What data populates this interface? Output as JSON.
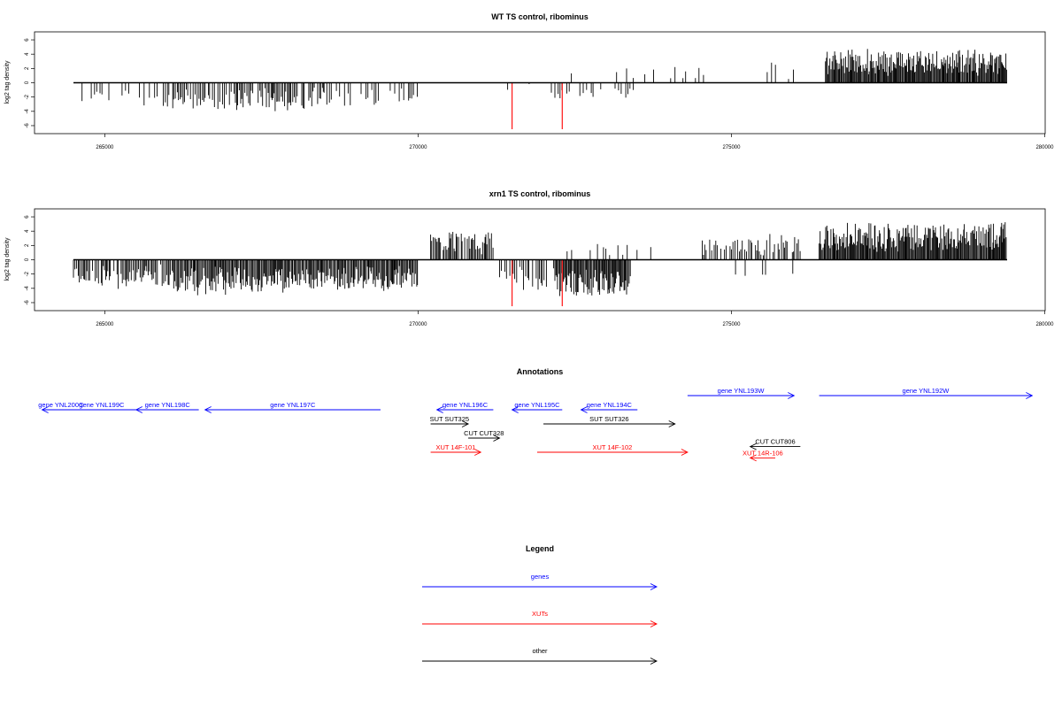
{
  "chart_data": [
    {
      "type": "bar",
      "title": "WT TS control, ribominus",
      "ylabel": "log2 tag density",
      "xlim": [
        264000,
        280000
      ],
      "ylim": [
        -6.5,
        6.5
      ],
      "x_ticks": [
        265000,
        270000,
        275000,
        280000
      ],
      "x_tick_labels": [
        "265000",
        "270000",
        "275000",
        "280000"
      ],
      "y_ticks": [
        -6,
        -4,
        -2,
        0,
        2,
        4,
        6
      ],
      "y_tick_labels": [
        "-6",
        "-4",
        "-2",
        "0",
        "2",
        "4",
        "6"
      ],
      "baseline": {
        "x": [
          264500,
          279400
        ],
        "y": 0
      },
      "segments": [
        {
          "start": 264500,
          "end": 266000,
          "level": -2.4,
          "density": 0.35,
          "jitter": 0.9
        },
        {
          "start": 266000,
          "end": 268500,
          "level": -3.0,
          "density": 0.6,
          "jitter": 1.0
        },
        {
          "start": 268500,
          "end": 270000,
          "level": -2.6,
          "density": 0.45,
          "jitter": 1.0
        },
        {
          "start": 270100,
          "end": 270800,
          "level": 2.5,
          "density": 0.12,
          "jitter": 0.8
        },
        {
          "start": 271300,
          "end": 272000,
          "level": -1.5,
          "density": 0.25,
          "jitter": 0.8
        },
        {
          "start": 272000,
          "end": 273500,
          "level": -1.8,
          "density": 0.35,
          "jitter": 0.8
        },
        {
          "start": 272200,
          "end": 273500,
          "level": 1.8,
          "density": 0.1,
          "jitter": 0.8
        },
        {
          "start": 273500,
          "end": 276000,
          "level": 2.0,
          "density": 0.25,
          "jitter": 0.8
        },
        {
          "start": 276500,
          "end": 279400,
          "level": 3.6,
          "density": 1.0,
          "jitter": 0.8
        }
      ],
      "highlights": [
        {
          "x": 271500,
          "y": -6.5,
          "color": "#ff0000"
        },
        {
          "x": 272300,
          "y": -6.5,
          "color": "#ff0000"
        }
      ]
    },
    {
      "type": "bar",
      "title": "xrn1 TS control, ribominus",
      "ylabel": "log2 tag density",
      "xlim": [
        264000,
        280000
      ],
      "ylim": [
        -6.5,
        6.5
      ],
      "x_ticks": [
        265000,
        270000,
        275000,
        280000
      ],
      "x_tick_labels": [
        "265000",
        "270000",
        "275000",
        "280000"
      ],
      "y_ticks": [
        -6,
        -4,
        -2,
        0,
        2,
        4,
        6
      ],
      "y_tick_labels": [
        "-6",
        "-4",
        "-2",
        "0",
        "2",
        "4",
        "6"
      ],
      "baseline": {
        "x": [
          264500,
          279400
        ],
        "y": 0
      },
      "segments": [
        {
          "start": 264500,
          "end": 266100,
          "level": -3.0,
          "density": 0.7,
          "jitter": 1.0
        },
        {
          "start": 266100,
          "end": 268000,
          "level": -3.6,
          "density": 0.85,
          "jitter": 1.1
        },
        {
          "start": 268000,
          "end": 270000,
          "level": -3.3,
          "density": 0.85,
          "jitter": 1.0
        },
        {
          "start": 270200,
          "end": 271200,
          "level": 3.0,
          "density": 0.7,
          "jitter": 1.0
        },
        {
          "start": 271300,
          "end": 272200,
          "level": -3.2,
          "density": 0.55,
          "jitter": 1.3
        },
        {
          "start": 272200,
          "end": 273400,
          "level": -4.0,
          "density": 0.9,
          "jitter": 1.0
        },
        {
          "start": 272300,
          "end": 273900,
          "level": 1.8,
          "density": 0.25,
          "jitter": 0.8
        },
        {
          "start": 274500,
          "end": 276100,
          "level": 2.6,
          "density": 0.55,
          "jitter": 0.9
        },
        {
          "start": 275000,
          "end": 276000,
          "level": -2.0,
          "density": 0.25,
          "jitter": 0.9
        },
        {
          "start": 276400,
          "end": 279400,
          "level": 4.0,
          "density": 1.0,
          "jitter": 0.9
        }
      ],
      "highlights": [
        {
          "x": 271500,
          "y": -6.5,
          "color": "#ff0000"
        },
        {
          "x": 272300,
          "y": -6.5,
          "color": "#ff0000"
        }
      ]
    }
  ],
  "annotations": {
    "title": "Annotations",
    "features": [
      {
        "label": "gene YNL200C",
        "start": 264000,
        "end": 264600,
        "row": 0,
        "strand": "-",
        "color": "#0000ff",
        "arrow": false
      },
      {
        "label": "gene YNL199C",
        "start": 264000,
        "end": 265900,
        "row": 0,
        "strand": "-",
        "color": "#0000ff"
      },
      {
        "label": "gene YNL198C",
        "start": 265500,
        "end": 266500,
        "row": 0,
        "strand": "-",
        "color": "#0000ff"
      },
      {
        "label": "gene YNL197C",
        "start": 266600,
        "end": 269400,
        "row": 0,
        "strand": "-",
        "color": "#0000ff"
      },
      {
        "label": "gene YNL196C",
        "start": 270300,
        "end": 271200,
        "row": 0,
        "strand": "-",
        "color": "#0000ff"
      },
      {
        "label": "gene YNL195C",
        "start": 271500,
        "end": 272300,
        "row": 0,
        "strand": "-",
        "color": "#0000ff"
      },
      {
        "label": "gene YNL194C",
        "start": 272600,
        "end": 273500,
        "row": 0,
        "strand": "-",
        "color": "#0000ff"
      },
      {
        "label": "gene YNL193W",
        "start": 274300,
        "end": 276000,
        "row": -1,
        "strand": "+",
        "color": "#0000ff"
      },
      {
        "label": "gene YNL192W",
        "start": 276400,
        "end": 279800,
        "row": -1,
        "strand": "+",
        "color": "#0000ff"
      },
      {
        "label": "SUT SUT325",
        "start": 270200,
        "end": 270800,
        "row": 1,
        "strand": "+",
        "color": "#000000"
      },
      {
        "label": "SUT SUT326",
        "start": 272000,
        "end": 274100,
        "row": 1,
        "strand": "+",
        "color": "#000000"
      },
      {
        "label": "CUT CUT328",
        "start": 270800,
        "end": 271300,
        "row": 2,
        "strand": "+",
        "color": "#000000"
      },
      {
        "label": "XUT 14F-101",
        "start": 270200,
        "end": 271000,
        "row": 3,
        "strand": "+",
        "color": "#ff0000"
      },
      {
        "label": "XUT 14F-102",
        "start": 271900,
        "end": 274300,
        "row": 3,
        "strand": "+",
        "color": "#ff0000"
      },
      {
        "label": "CUT CUT806",
        "start": 275300,
        "end": 276100,
        "row": 2.6,
        "strand": "-",
        "color": "#000000"
      },
      {
        "label": "XUT 14R-106",
        "start": 275300,
        "end": 275700,
        "row": 3.4,
        "strand": "-",
        "color": "#ff0000"
      }
    ]
  },
  "legend": {
    "title": "Legend",
    "items": [
      {
        "label": "genes",
        "color": "#0000ff"
      },
      {
        "label": "XUTs",
        "color": "#ff0000"
      },
      {
        "label": "other",
        "color": "#000000"
      }
    ]
  }
}
